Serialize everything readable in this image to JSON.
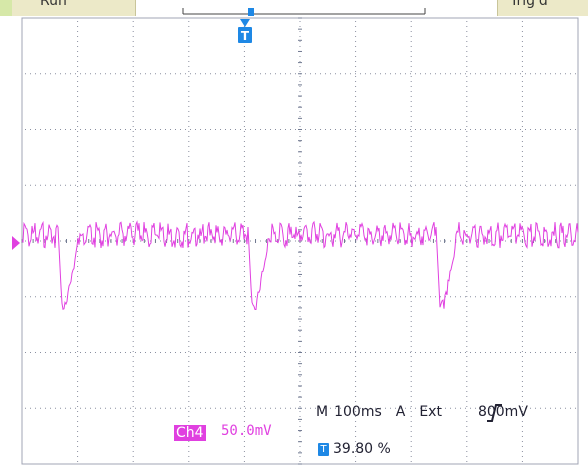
{
  "header": {
    "run_label": "Run",
    "trig_label": "Trig'd"
  },
  "markers": {
    "trigger_marker_label": "T",
    "ground_marker": "ch4-ground-arrow"
  },
  "channel": {
    "name": "Ch4",
    "scale": "50.0mV",
    "color": "#e040e0"
  },
  "timebase": {
    "mode": "M",
    "value": "100ms",
    "trigger_mode": "A",
    "source": "Ext",
    "slope_icon": "rising-edge-icon",
    "level": "800mV"
  },
  "trigger_position": {
    "icon": "T",
    "value": "39.80 %"
  },
  "colors": {
    "trace": "#e040e0",
    "grid_dots": "#8a8fa0",
    "grid_center": "#6f7890",
    "marker_blue": "#1e88e5",
    "frame": "#a0a4b4"
  }
}
